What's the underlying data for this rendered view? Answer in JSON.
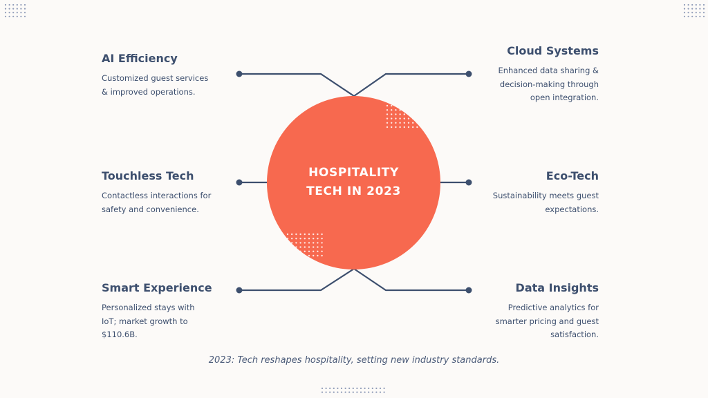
{
  "center": {
    "line1": "HOSPITALITY",
    "line2": "TECH IN 2023"
  },
  "items": [
    {
      "title": "AI Efficiency",
      "desc1": "Customized guest services",
      "desc2": "& improved operations.",
      "desc3": ""
    },
    {
      "title": "Cloud Systems",
      "desc1": "Enhanced data sharing &",
      "desc2": "decision-making through",
      "desc3": "open integration."
    },
    {
      "title": "Touchless Tech",
      "desc1": "Contactless interactions for",
      "desc2": "safety and convenience.",
      "desc3": ""
    },
    {
      "title": "Eco-Tech",
      "desc1": "Sustainability meets guest",
      "desc2": "expectations.",
      "desc3": ""
    },
    {
      "title": "Smart Experience",
      "desc1": "Personalized stays with",
      "desc2": "IoT; market growth to",
      "desc3": "$110.6B."
    },
    {
      "title": "Data Insights",
      "desc1": "Predictive analytics for",
      "desc2": "smarter pricing and guest",
      "desc3": "satisfaction."
    }
  ],
  "footer": "2023: Tech reshapes hospitality, setting new industry standards.",
  "colors": {
    "accent": "#f7694f",
    "text": "#3d4f6e",
    "dots": "#9aa8c2",
    "background": "#fcfaf8"
  }
}
